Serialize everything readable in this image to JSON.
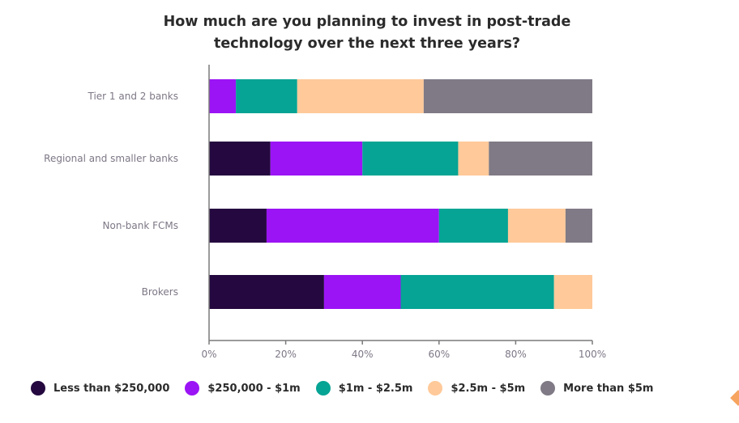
{
  "chart_data": {
    "type": "bar",
    "orientation": "horizontal",
    "stacked": true,
    "title_lines": [
      "How much are you planning to invest in post-trade",
      "technology over the next three years?"
    ],
    "categories": [
      "Tier 1 and 2 banks",
      "Regional and smaller banks",
      "Non-bank FCMs",
      "Brokers"
    ],
    "series": [
      {
        "name": "Less than $250,000",
        "color": "#24083f",
        "values": [
          0,
          16,
          15,
          30
        ]
      },
      {
        "name": "$250,000 - $1m",
        "color": "#9b14f5",
        "values": [
          7,
          24,
          45,
          20
        ]
      },
      {
        "name": "$1m - $2.5m",
        "color": "#05a494",
        "values": [
          16,
          25,
          18,
          40
        ]
      },
      {
        "name": "$2.5m - $5m",
        "color": "#ffc999",
        "values": [
          33,
          8,
          15,
          10
        ]
      },
      {
        "name": "More than $5m",
        "color": "#7f7a85",
        "values": [
          44,
          27,
          7,
          0
        ]
      }
    ],
    "xlim": [
      0,
      100
    ],
    "x_ticks": [
      "0%",
      "20%",
      "40%",
      "60%",
      "80%",
      "100%"
    ],
    "grid": false,
    "legend_position": "bottom"
  }
}
